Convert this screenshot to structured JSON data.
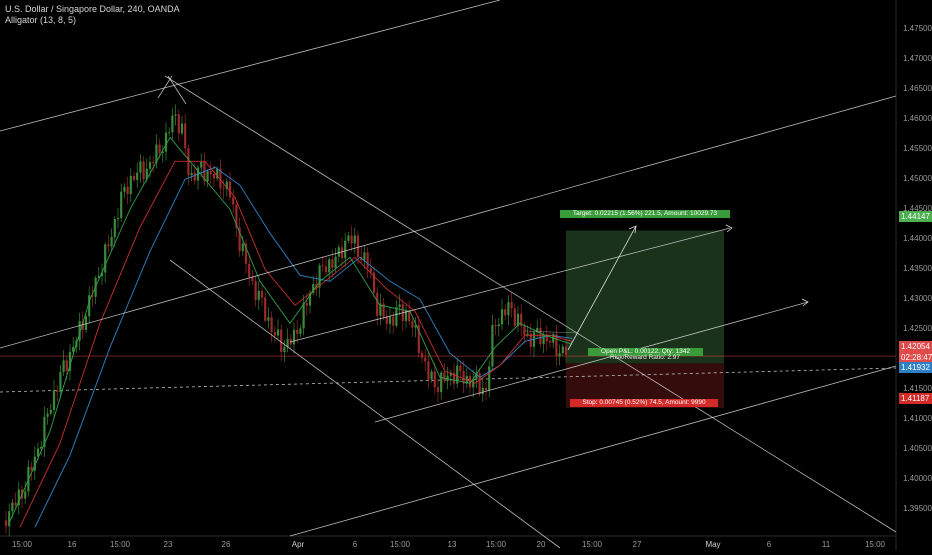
{
  "legend": {
    "symbol": "U.S. Dollar / Singapore Dollar, 240, OANDA",
    "indicator": "Alligator (13, 8, 5)"
  },
  "colors": {
    "background": "#000000",
    "candle_up": "#3a8a3a",
    "candle_down": "#9c2a2a",
    "jaw": "#2f86c7",
    "teeth": "#c9302c",
    "lips": "#2e9e4a",
    "trendline": "#d9d9d9",
    "target_zone": "#1e3a1e",
    "stop_zone": "#3a0d0d",
    "target_label": "#3a9b3a",
    "stop_label": "#d32a2a",
    "current_price_tag": "#e04a4a",
    "target_price_tag": "#4caf50",
    "stop_price_tag": "#d32a2a",
    "alt_price_tag": "#2f7fc4"
  },
  "price_axis": {
    "ticks": [
      "1.47500",
      "1.47000",
      "1.46500",
      "1.46000",
      "1.45500",
      "1.45000",
      "1.44500",
      "1.44000",
      "1.43500",
      "1.43000",
      "1.42500",
      "1.42000",
      "1.41500",
      "1.41000",
      "1.40500",
      "1.40000",
      "1.39500"
    ],
    "tag_target": "1.44147",
    "tag_current": "1.42054",
    "tag_countdown": "02:28:47",
    "tag_alt": "1.41932",
    "tag_stop": "1.41187"
  },
  "time_axis": {
    "labels": [
      "15:00",
      "16",
      "15:00",
      "23",
      "26",
      "Apr",
      "6",
      "15:00",
      "13",
      "15:00",
      "20",
      "15:00",
      "27",
      "May",
      "6",
      "11",
      "15:00"
    ]
  },
  "trade": {
    "target_label": "Target: 0.02215 (1.56%) 221.5, Amount: 10029.73",
    "open_label": "Open P&L: 0.00122, Qty: 1342",
    "ratio_label": "Risk/Reward Ratio: 2.97",
    "stop_label": "Stop: 0.00745 (0.52%) 74.5, Amount: 9990"
  },
  "chart_data": {
    "type": "candlestick",
    "title": "U.S. Dollar / Singapore Dollar, 240, OANDA",
    "instrument": "USDSGD",
    "timeframe": "240",
    "indicator": "Alligator (13, 8, 5)",
    "ylim": [
      1.3912,
      1.4779
    ],
    "y_ticks": [
      1.395,
      1.4,
      1.405,
      1.41,
      1.415,
      1.42,
      1.425,
      1.43,
      1.435,
      1.44,
      1.445,
      1.45,
      1.455,
      1.46,
      1.465,
      1.47,
      1.475
    ],
    "x_labels": [
      "15:00",
      "16",
      "15:00",
      "23",
      "26",
      "Apr",
      "6",
      "15:00",
      "13",
      "15:00",
      "20",
      "15:00",
      "27",
      "May",
      "6",
      "11",
      "15:00"
    ],
    "close_path": [
      [
        0,
        1.392
      ],
      [
        14,
        1.396
      ],
      [
        24,
        1.399
      ],
      [
        38,
        1.406
      ],
      [
        52,
        1.414
      ],
      [
        64,
        1.419
      ],
      [
        74,
        1.422
      ],
      [
        86,
        1.427
      ],
      [
        98,
        1.433
      ],
      [
        110,
        1.439
      ],
      [
        120,
        1.446
      ],
      [
        130,
        1.45
      ],
      [
        140,
        1.452
      ],
      [
        150,
        1.453
      ],
      [
        158,
        1.456
      ],
      [
        166,
        1.457
      ],
      [
        174,
        1.462
      ],
      [
        182,
        1.458
      ],
      [
        190,
        1.45
      ],
      [
        200,
        1.451
      ],
      [
        210,
        1.45
      ],
      [
        220,
        1.449
      ],
      [
        230,
        1.447
      ],
      [
        240,
        1.439
      ],
      [
        252,
        1.433
      ],
      [
        262,
        1.43
      ],
      [
        274,
        1.425
      ],
      [
        284,
        1.423
      ],
      [
        294,
        1.424
      ],
      [
        304,
        1.428
      ],
      [
        316,
        1.433
      ],
      [
        328,
        1.435
      ],
      [
        338,
        1.436
      ],
      [
        348,
        1.44
      ],
      [
        358,
        1.438
      ],
      [
        368,
        1.436
      ],
      [
        378,
        1.429
      ],
      [
        388,
        1.427
      ],
      [
        398,
        1.429
      ],
      [
        408,
        1.428
      ],
      [
        418,
        1.423
      ],
      [
        428,
        1.417
      ],
      [
        436,
        1.415
      ],
      [
        446,
        1.416
      ],
      [
        456,
        1.417
      ],
      [
        466,
        1.416
      ],
      [
        476,
        1.416
      ],
      [
        486,
        1.415
      ],
      [
        494,
        1.427
      ],
      [
        502,
        1.428
      ],
      [
        510,
        1.43
      ],
      [
        518,
        1.427
      ],
      [
        528,
        1.424
      ],
      [
        538,
        1.424
      ],
      [
        548,
        1.423
      ],
      [
        556,
        1.421
      ],
      [
        562,
        1.4205
      ]
    ],
    "jaw_path": [
      [
        35,
        1.392
      ],
      [
        70,
        1.404
      ],
      [
        110,
        1.422
      ],
      [
        150,
        1.438
      ],
      [
        185,
        1.45
      ],
      [
        215,
        1.452
      ],
      [
        240,
        1.449
      ],
      [
        270,
        1.441
      ],
      [
        300,
        1.434
      ],
      [
        330,
        1.433
      ],
      [
        360,
        1.437
      ],
      [
        390,
        1.433
      ],
      [
        420,
        1.43
      ],
      [
        450,
        1.421
      ],
      [
        480,
        1.417
      ],
      [
        500,
        1.419
      ],
      [
        525,
        1.423
      ],
      [
        550,
        1.424
      ],
      [
        572,
        1.4235
      ]
    ],
    "teeth_path": [
      [
        20,
        1.392
      ],
      [
        60,
        1.406
      ],
      [
        100,
        1.426
      ],
      [
        140,
        1.442
      ],
      [
        175,
        1.453
      ],
      [
        205,
        1.453
      ],
      [
        235,
        1.447
      ],
      [
        265,
        1.435
      ],
      [
        295,
        1.429
      ],
      [
        325,
        1.433
      ],
      [
        355,
        1.437
      ],
      [
        385,
        1.432
      ],
      [
        415,
        1.428
      ],
      [
        445,
        1.418
      ],
      [
        475,
        1.416
      ],
      [
        500,
        1.419
      ],
      [
        525,
        1.424
      ],
      [
        550,
        1.424
      ],
      [
        572,
        1.423
      ]
    ],
    "lips_path": [
      [
        10,
        1.393
      ],
      [
        50,
        1.408
      ],
      [
        90,
        1.43
      ],
      [
        130,
        1.445
      ],
      [
        170,
        1.457
      ],
      [
        200,
        1.451
      ],
      [
        230,
        1.445
      ],
      [
        260,
        1.433
      ],
      [
        290,
        1.426
      ],
      [
        320,
        1.433
      ],
      [
        350,
        1.437
      ],
      [
        380,
        1.429
      ],
      [
        410,
        1.428
      ],
      [
        440,
        1.417
      ],
      [
        470,
        1.416
      ],
      [
        495,
        1.422
      ],
      [
        520,
        1.426
      ],
      [
        545,
        1.424
      ],
      [
        572,
        1.4225
      ]
    ],
    "position": {
      "side": "long",
      "entry": 1.41932,
      "target": 1.44147,
      "stop": 1.41187,
      "current": 1.42054,
      "qty": 1342,
      "risk_reward": 2.97
    }
  }
}
